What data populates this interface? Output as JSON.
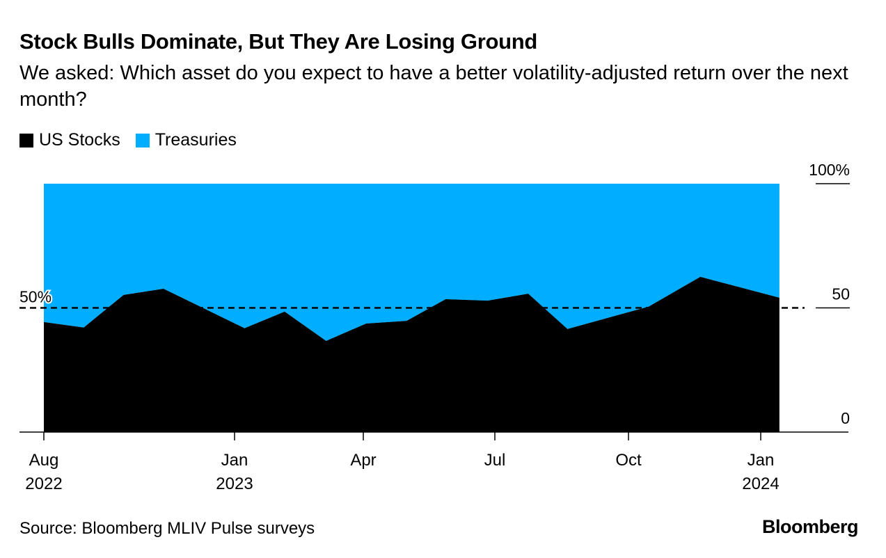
{
  "chart_data": {
    "type": "area",
    "stacked": true,
    "title": "Stock Bulls Dominate, But They Are Losing Ground",
    "subtitle": "We asked: Which asset do you expect to have a better volatility-adjusted return over the next month?",
    "legend": [
      {
        "name": "US Stocks",
        "color": "#000000"
      },
      {
        "name": "Treasuries",
        "color": "#00adff"
      }
    ],
    "legend_placement": "top-left",
    "x": [
      "2022-08-01",
      "2022-09-02",
      "2022-10-04",
      "2022-11-05",
      "2023-01-08",
      "2023-02-05",
      "2023-03-06",
      "2023-04-03",
      "2023-05-01",
      "2023-05-28",
      "2023-06-26",
      "2023-07-24",
      "2023-08-20",
      "2023-10-15",
      "2023-11-20",
      "2024-01-14"
    ],
    "series": [
      {
        "name": "US Stocks",
        "values": [
          44.3,
          42.1,
          55.2,
          57.7,
          41.8,
          48.5,
          36.7,
          43.7,
          44.8,
          53.5,
          52.9,
          55.7,
          41.5,
          50.5,
          62.5,
          54.1
        ]
      },
      {
        "name": "Treasuries",
        "values": [
          55.7,
          57.9,
          44.8,
          42.3,
          58.2,
          51.5,
          63.3,
          56.3,
          55.2,
          46.5,
          47.1,
          44.3,
          58.5,
          49.5,
          37.5,
          45.9
        ]
      }
    ],
    "ylim": [
      0,
      100
    ],
    "y_ticks": [
      {
        "value": 100,
        "label": "100%"
      },
      {
        "value": 50,
        "label": "50"
      },
      {
        "value": 0,
        "label": "0"
      }
    ],
    "x_ticks": [
      {
        "date": "2022-08-01",
        "label1": "Aug",
        "label2": "2022"
      },
      {
        "date": "2023-01-01",
        "label1": "Jan",
        "label2": "2023"
      },
      {
        "date": "2023-04-01",
        "label1": "Apr",
        "label2": ""
      },
      {
        "date": "2023-07-01",
        "label1": "Jul",
        "label2": ""
      },
      {
        "date": "2023-10-01",
        "label1": "Oct",
        "label2": ""
      },
      {
        "date": "2024-01-01",
        "label1": "Jan",
        "label2": "2024"
      }
    ],
    "reference_line": {
      "value": 50,
      "label": "50%",
      "style": "dashed"
    },
    "grid": false
  },
  "footer": {
    "source": "Source: Bloomberg MLIV Pulse surveys",
    "brand": "Bloomberg"
  }
}
